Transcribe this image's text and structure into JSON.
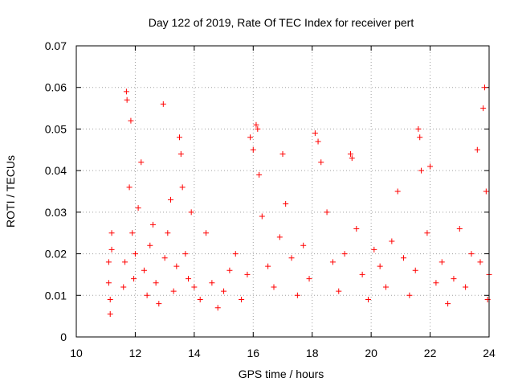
{
  "chart_data": {
    "type": "scatter",
    "title": "Day 122 of 2019, Rate Of TEC Index for receiver pert",
    "xlabel": "GPS time / hours",
    "ylabel": "ROTI / TECUs",
    "xlim": [
      10,
      24
    ],
    "ylim": [
      0,
      0.07
    ],
    "xticks": [
      10,
      12,
      14,
      16,
      18,
      20,
      22,
      24
    ],
    "yticks": [
      0,
      0.01,
      0.02,
      0.03,
      0.04,
      0.05,
      0.06,
      0.07
    ],
    "xtick_labels": [
      "10",
      "12",
      "14",
      "16",
      "18",
      "20",
      "22",
      "24"
    ],
    "ytick_labels": [
      "0",
      "0.01",
      "0.02",
      "0.03",
      "0.04",
      "0.05",
      "0.06",
      "0.07"
    ],
    "grid": true,
    "marker": "+",
    "marker_color": "#ff0000",
    "series": [
      {
        "name": "ROTI",
        "points": [
          [
            11.1,
            0.013
          ],
          [
            11.1,
            0.018
          ],
          [
            11.15,
            0.009
          ],
          [
            11.2,
            0.021
          ],
          [
            11.2,
            0.025
          ],
          [
            11.15,
            0.0055
          ],
          [
            11.6,
            0.012
          ],
          [
            11.65,
            0.018
          ],
          [
            11.7,
            0.059
          ],
          [
            11.72,
            0.057
          ],
          [
            11.8,
            0.036
          ],
          [
            11.85,
            0.052
          ],
          [
            11.9,
            0.025
          ],
          [
            11.95,
            0.014
          ],
          [
            12.0,
            0.02
          ],
          [
            12.1,
            0.031
          ],
          [
            12.2,
            0.042
          ],
          [
            12.3,
            0.016
          ],
          [
            12.4,
            0.01
          ],
          [
            12.5,
            0.022
          ],
          [
            12.6,
            0.027
          ],
          [
            12.7,
            0.013
          ],
          [
            12.8,
            0.008
          ],
          [
            12.95,
            0.056
          ],
          [
            13.0,
            0.019
          ],
          [
            13.1,
            0.025
          ],
          [
            13.2,
            0.033
          ],
          [
            13.3,
            0.011
          ],
          [
            13.4,
            0.017
          ],
          [
            13.5,
            0.048
          ],
          [
            13.55,
            0.044
          ],
          [
            13.6,
            0.036
          ],
          [
            13.7,
            0.02
          ],
          [
            13.8,
            0.014
          ],
          [
            13.9,
            0.03
          ],
          [
            14.0,
            0.012
          ],
          [
            14.2,
            0.009
          ],
          [
            14.4,
            0.025
          ],
          [
            14.6,
            0.013
          ],
          [
            14.8,
            0.007
          ],
          [
            15.0,
            0.011
          ],
          [
            15.2,
            0.016
          ],
          [
            15.4,
            0.02
          ],
          [
            15.6,
            0.009
          ],
          [
            15.8,
            0.015
          ],
          [
            15.9,
            0.048
          ],
          [
            16.0,
            0.045
          ],
          [
            16.1,
            0.051
          ],
          [
            16.15,
            0.05
          ],
          [
            16.2,
            0.039
          ],
          [
            16.3,
            0.029
          ],
          [
            16.5,
            0.017
          ],
          [
            16.7,
            0.012
          ],
          [
            16.9,
            0.024
          ],
          [
            17.0,
            0.044
          ],
          [
            17.1,
            0.032
          ],
          [
            17.3,
            0.019
          ],
          [
            17.5,
            0.01
          ],
          [
            17.7,
            0.022
          ],
          [
            17.9,
            0.014
          ],
          [
            18.1,
            0.049
          ],
          [
            18.2,
            0.047
          ],
          [
            18.3,
            0.042
          ],
          [
            18.5,
            0.03
          ],
          [
            18.7,
            0.018
          ],
          [
            18.9,
            0.011
          ],
          [
            19.1,
            0.02
          ],
          [
            19.3,
            0.044
          ],
          [
            19.35,
            0.043
          ],
          [
            19.5,
            0.026
          ],
          [
            19.7,
            0.015
          ],
          [
            19.9,
            0.009
          ],
          [
            20.1,
            0.021
          ],
          [
            20.3,
            0.017
          ],
          [
            20.5,
            0.012
          ],
          [
            20.7,
            0.023
          ],
          [
            20.9,
            0.035
          ],
          [
            21.1,
            0.019
          ],
          [
            21.3,
            0.01
          ],
          [
            21.5,
            0.016
          ],
          [
            21.6,
            0.05
          ],
          [
            21.65,
            0.048
          ],
          [
            21.7,
            0.04
          ],
          [
            21.9,
            0.025
          ],
          [
            22.0,
            0.041
          ],
          [
            22.2,
            0.013
          ],
          [
            22.4,
            0.018
          ],
          [
            22.6,
            0.008
          ],
          [
            22.8,
            0.014
          ],
          [
            23.0,
            0.026
          ],
          [
            23.2,
            0.012
          ],
          [
            23.4,
            0.02
          ],
          [
            23.6,
            0.045
          ],
          [
            23.7,
            0.018
          ],
          [
            23.8,
            0.055
          ],
          [
            23.85,
            0.06
          ],
          [
            23.9,
            0.035
          ],
          [
            23.95,
            0.009
          ],
          [
            24.0,
            0.015
          ]
        ]
      }
    ]
  }
}
